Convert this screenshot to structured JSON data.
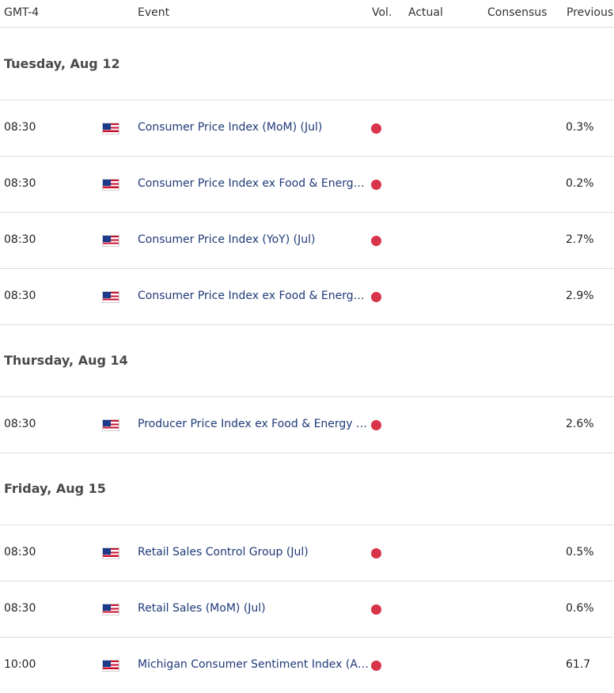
{
  "header": {
    "timezone": "GMT-4",
    "event": "Event",
    "vol": "Vol.",
    "actual": "Actual",
    "consensus": "Consensus",
    "previous": "Previous"
  },
  "colors": {
    "volatility_high": "#d8344a",
    "event_link": "#1f3a78"
  },
  "days": [
    {
      "label": "Tuesday, Aug 12",
      "events": [
        {
          "time": "08:30",
          "country": "us-flag-icon",
          "event": "Consumer Price Index (MoM) (Jul)",
          "actual": "",
          "consensus": "",
          "previous": "0.3%"
        },
        {
          "time": "08:30",
          "country": "us-flag-icon",
          "event": "Consumer Price Index ex Food & Energy (MoM) (Jul)",
          "actual": "",
          "consensus": "",
          "previous": "0.2%"
        },
        {
          "time": "08:30",
          "country": "us-flag-icon",
          "event": "Consumer Price Index (YoY) (Jul)",
          "actual": "",
          "consensus": "",
          "previous": "2.7%"
        },
        {
          "time": "08:30",
          "country": "us-flag-icon",
          "event": "Consumer Price Index ex Food & Energy (YoY) (Jul)",
          "actual": "",
          "consensus": "",
          "previous": "2.9%"
        }
      ]
    },
    {
      "label": "Thursday, Aug 14",
      "events": [
        {
          "time": "08:30",
          "country": "us-flag-icon",
          "event": "Producer Price Index ex Food & Energy (YoY) (Jul)",
          "actual": "",
          "consensus": "",
          "previous": "2.6%"
        }
      ]
    },
    {
      "label": "Friday, Aug 15",
      "events": [
        {
          "time": "08:30",
          "country": "us-flag-icon",
          "event": "Retail Sales Control Group (Jul)",
          "actual": "",
          "consensus": "",
          "previous": "0.5%"
        },
        {
          "time": "08:30",
          "country": "us-flag-icon",
          "event": "Retail Sales (MoM) (Jul)",
          "actual": "",
          "consensus": "",
          "previous": "0.6%"
        },
        {
          "time": "10:00",
          "country": "us-flag-icon",
          "event": "Michigan Consumer Sentiment Index (Aug)",
          "actual": "",
          "consensus": "",
          "previous": "61.7"
        }
      ]
    }
  ]
}
